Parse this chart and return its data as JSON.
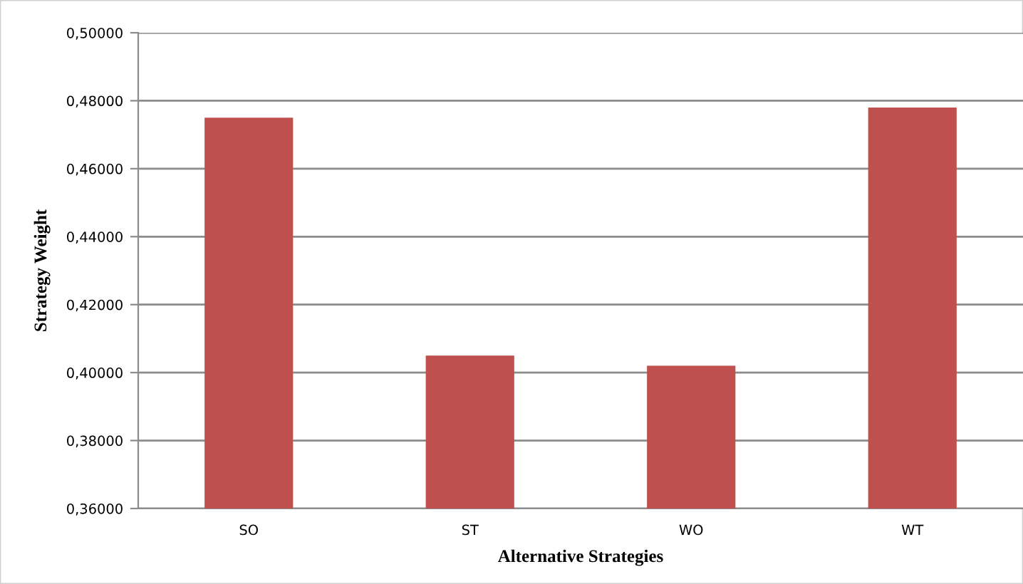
{
  "chart_data": {
    "type": "bar",
    "xlabel": "Alternative Strategies",
    "ylabel": "Strategy Weight",
    "categories": [
      "SO",
      "ST",
      "WO",
      "WT"
    ],
    "values": [
      0.475,
      0.405,
      0.402,
      0.478
    ],
    "color": "#c0504d",
    "ylim": [
      0.36,
      0.5
    ],
    "yticks": [
      {
        "value": 0.36,
        "label": "0,36000"
      },
      {
        "value": 0.38,
        "label": "0,38000"
      },
      {
        "value": 0.4,
        "label": "0,40000"
      },
      {
        "value": 0.42,
        "label": "0,42000"
      },
      {
        "value": 0.44,
        "label": "0,44000"
      },
      {
        "value": 0.46,
        "label": "0,46000"
      },
      {
        "value": 0.48,
        "label": "0,48000"
      },
      {
        "value": 0.5,
        "label": "0,50000"
      }
    ],
    "grid": "y"
  }
}
